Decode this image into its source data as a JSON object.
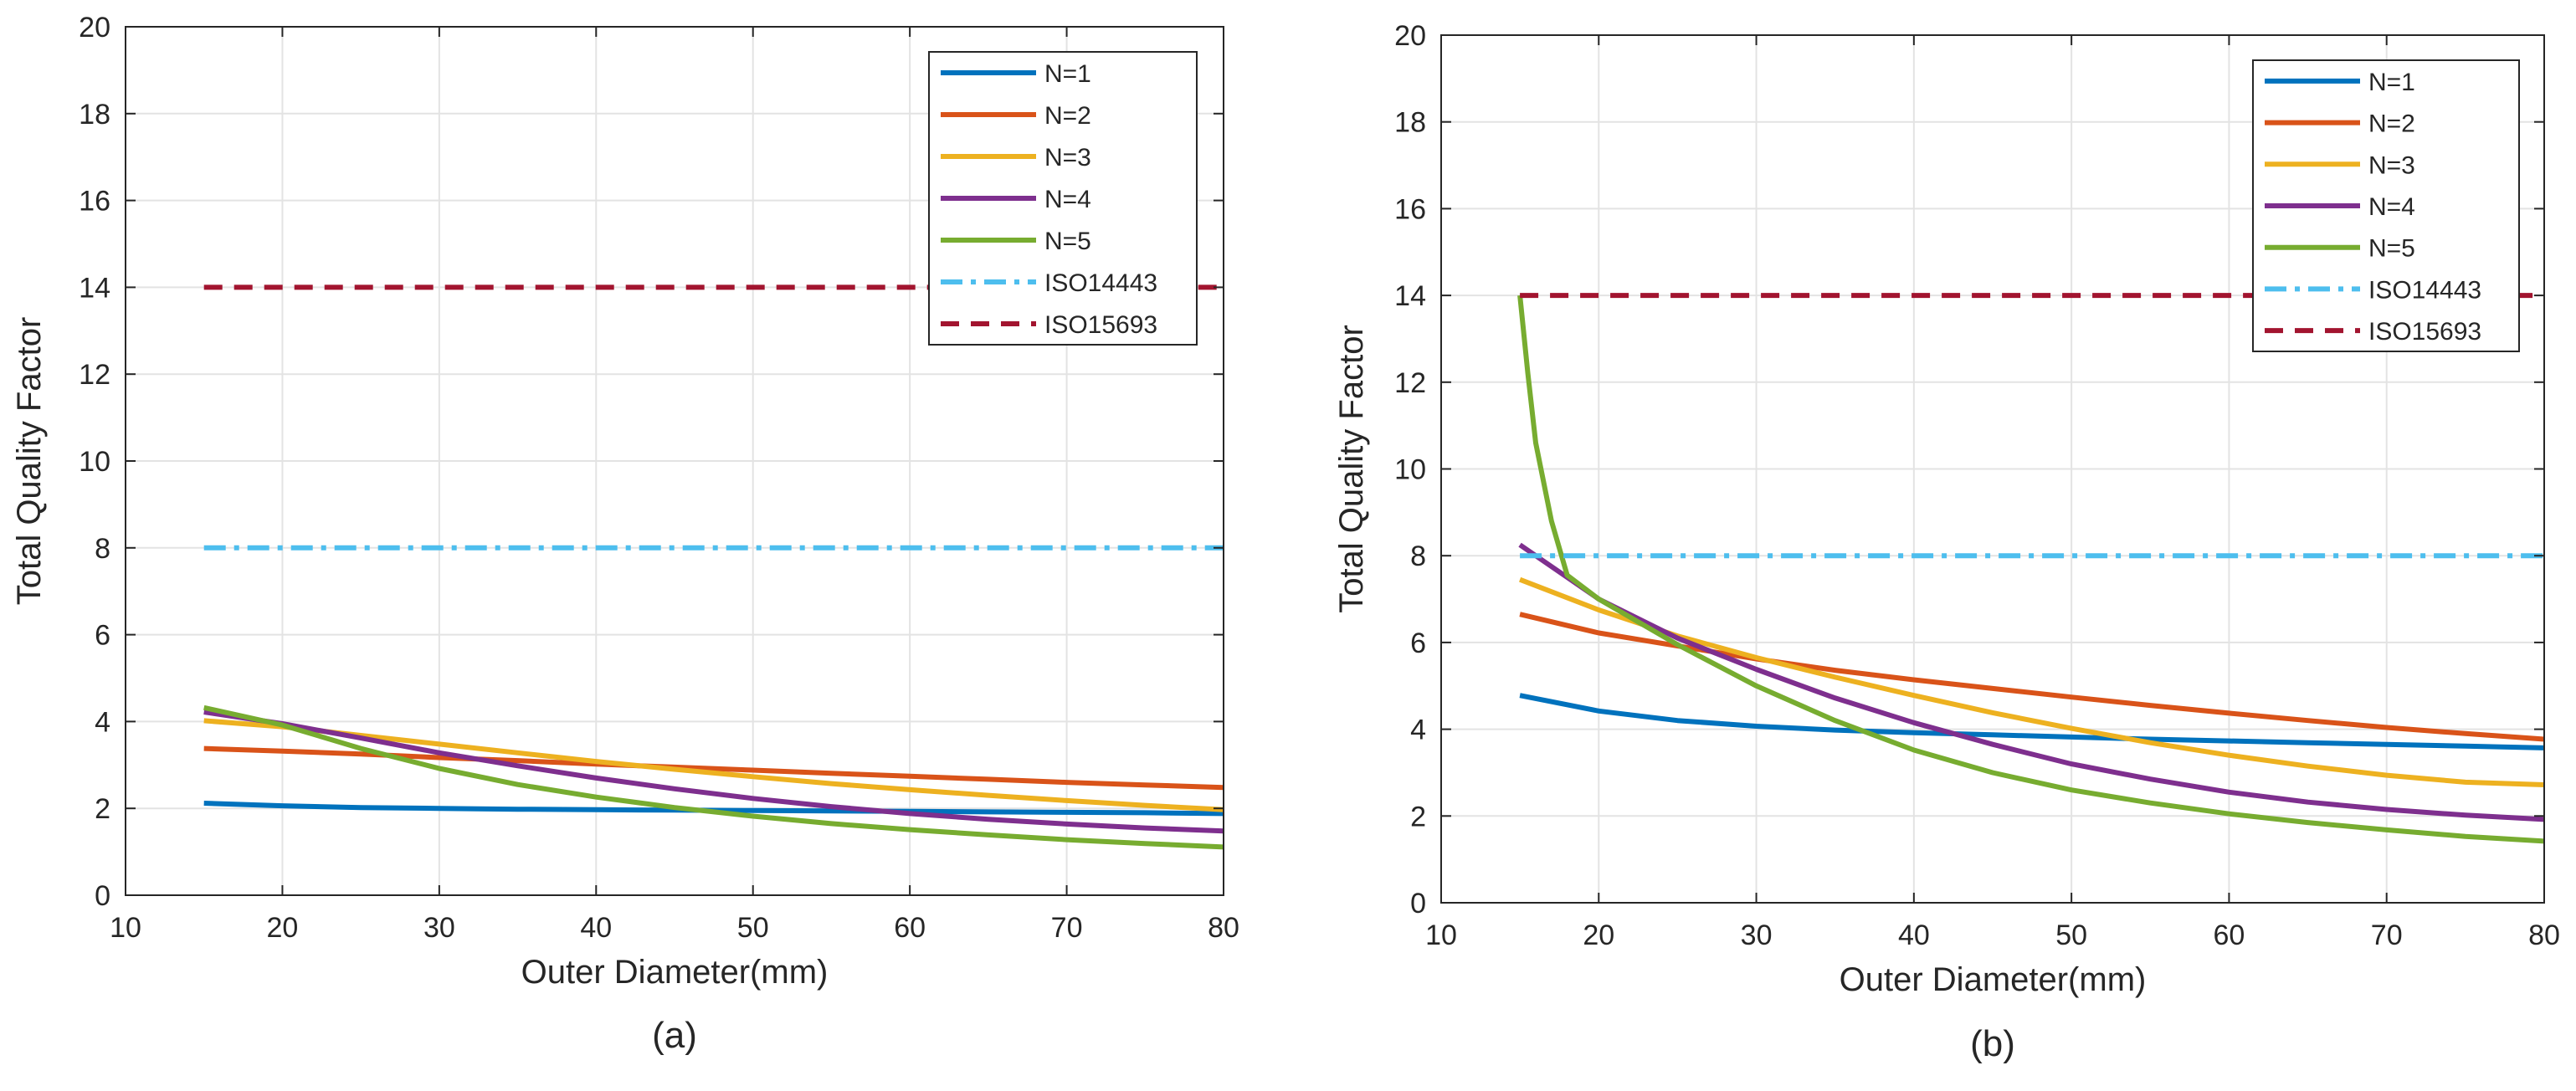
{
  "figure": {
    "panels": [
      "(a)",
      "(b)"
    ]
  },
  "chart_data": [
    {
      "type": "line",
      "caption": "(a)",
      "xlabel": "Outer Diameter(mm)",
      "ylabel": "Total Quality Factor",
      "xlim": [
        10,
        80
      ],
      "ylim": [
        0,
        20
      ],
      "xticks": [
        10,
        20,
        30,
        40,
        50,
        60,
        70,
        80
      ],
      "yticks": [
        0,
        2,
        4,
        6,
        8,
        10,
        12,
        14,
        16,
        18,
        20
      ],
      "grid": true,
      "legend_position": "top-right",
      "x": [
        15,
        20,
        25,
        30,
        35,
        40,
        45,
        50,
        55,
        60,
        65,
        70,
        75,
        80
      ],
      "series": [
        {
          "name": "N=1",
          "color": "#0072BD",
          "style": "solid",
          "values": [
            2.12,
            2.06,
            2.02,
            2.0,
            1.98,
            1.97,
            1.96,
            1.95,
            1.94,
            1.93,
            1.92,
            1.91,
            1.9,
            1.88
          ]
        },
        {
          "name": "N=2",
          "color": "#D95319",
          "style": "solid",
          "values": [
            3.38,
            3.32,
            3.25,
            3.17,
            3.1,
            3.02,
            2.95,
            2.88,
            2.81,
            2.74,
            2.67,
            2.6,
            2.54,
            2.48
          ]
        },
        {
          "name": "N=3",
          "color": "#EDB120",
          "style": "solid",
          "values": [
            4.02,
            3.88,
            3.68,
            3.48,
            3.28,
            3.08,
            2.9,
            2.73,
            2.57,
            2.43,
            2.3,
            2.18,
            2.07,
            1.97
          ]
        },
        {
          "name": "N=4",
          "color": "#7E2F8E",
          "style": "solid",
          "values": [
            4.22,
            3.95,
            3.62,
            3.28,
            2.98,
            2.7,
            2.45,
            2.23,
            2.04,
            1.88,
            1.75,
            1.64,
            1.55,
            1.48
          ]
        },
        {
          "name": "N=5",
          "color": "#77AC30",
          "style": "solid",
          "values": [
            4.32,
            3.92,
            3.38,
            2.92,
            2.55,
            2.26,
            2.02,
            1.82,
            1.65,
            1.51,
            1.39,
            1.28,
            1.19,
            1.11
          ]
        },
        {
          "name": "ISO14443",
          "color": "#4DBEEE",
          "style": "dashdot",
          "x": [
            15,
            80
          ],
          "values": [
            8,
            8
          ]
        },
        {
          "name": "ISO15693",
          "color": "#A2142F",
          "style": "dashed",
          "x": [
            15,
            80
          ],
          "values": [
            14,
            14
          ]
        }
      ]
    },
    {
      "type": "line",
      "caption": "(b)",
      "xlabel": "Outer Diameter(mm)",
      "ylabel": "Total Quality Factor",
      "xlim": [
        10,
        80
      ],
      "ylim": [
        0,
        20
      ],
      "xticks": [
        10,
        20,
        30,
        40,
        50,
        60,
        70,
        80
      ],
      "yticks": [
        0,
        2,
        4,
        6,
        8,
        10,
        12,
        14,
        16,
        18,
        20
      ],
      "grid": true,
      "legend_position": "top-right",
      "x": [
        15,
        20,
        25,
        30,
        35,
        40,
        45,
        50,
        55,
        60,
        65,
        70,
        75,
        80
      ],
      "series": [
        {
          "name": "N=1",
          "color": "#0072BD",
          "style": "solid",
          "values": [
            4.78,
            4.42,
            4.2,
            4.07,
            3.98,
            3.92,
            3.87,
            3.82,
            3.77,
            3.73,
            3.69,
            3.65,
            3.61,
            3.57
          ]
        },
        {
          "name": "N=2",
          "color": "#D95319",
          "style": "solid",
          "values": [
            6.65,
            6.22,
            5.92,
            5.62,
            5.36,
            5.14,
            4.94,
            4.74,
            4.55,
            4.37,
            4.2,
            4.04,
            3.9,
            3.77
          ]
        },
        {
          "name": "N=3",
          "color": "#EDB120",
          "style": "solid",
          "values": [
            7.45,
            6.75,
            6.15,
            5.65,
            5.2,
            4.78,
            4.38,
            4.02,
            3.69,
            3.4,
            3.15,
            2.94,
            2.78,
            2.72
          ]
        },
        {
          "name": "N=4",
          "color": "#7E2F8E",
          "style": "solid",
          "values": [
            8.25,
            7.0,
            6.1,
            5.38,
            4.72,
            4.15,
            3.65,
            3.2,
            2.85,
            2.55,
            2.32,
            2.15,
            2.02,
            1.92
          ]
        },
        {
          "name": "N=5",
          "color": "#77AC30",
          "x": [
            15,
            15.5,
            16,
            17,
            18,
            20,
            25,
            30,
            35,
            40,
            45,
            50,
            55,
            60,
            65,
            70,
            75,
            80
          ],
          "style": "solid",
          "values": [
            14.0,
            12.2,
            10.6,
            8.8,
            7.55,
            7.0,
            5.95,
            5.0,
            4.2,
            3.52,
            3.0,
            2.6,
            2.3,
            2.05,
            1.85,
            1.68,
            1.53,
            1.42
          ]
        },
        {
          "name": "ISO14443",
          "color": "#4DBEEE",
          "style": "dashdot",
          "x": [
            15,
            80
          ],
          "values": [
            8,
            8
          ]
        },
        {
          "name": "ISO15693",
          "color": "#A2142F",
          "style": "dashed",
          "x": [
            15,
            80
          ],
          "values": [
            14,
            14
          ]
        }
      ]
    }
  ]
}
